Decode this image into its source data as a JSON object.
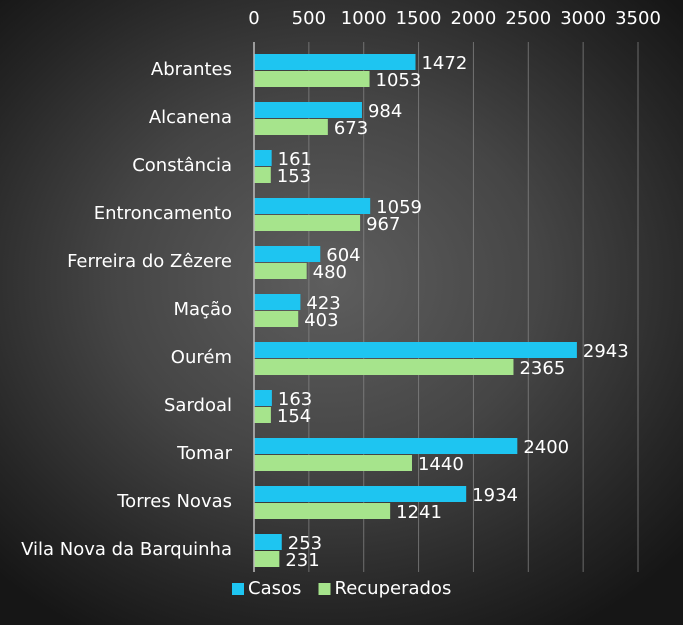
{
  "chart_data": {
    "type": "bar",
    "orientation": "horizontal",
    "categories": [
      "Abrantes",
      "Alcanena",
      "Constância",
      "Entroncamento",
      "Ferreira do Zêzere",
      "Mação",
      "Ourém",
      "Sardoal",
      "Tomar",
      "Torres Novas",
      "Vila Nova da Barquinha"
    ],
    "series": [
      {
        "name": "Casos",
        "color": "#1ec5f1",
        "values": [
          1472,
          984,
          161,
          1059,
          604,
          423,
          2943,
          163,
          2400,
          1934,
          253
        ]
      },
      {
        "name": "Recuperados",
        "color": "#a6e48c",
        "values": [
          1053,
          673,
          153,
          967,
          480,
          403,
          2365,
          154,
          1440,
          1241,
          231
        ]
      }
    ],
    "xlim": [
      0,
      3500
    ],
    "xticks": [
      "0",
      "500",
      "1000",
      "1500",
      "2000",
      "2500",
      "3000",
      "3500"
    ],
    "x_axis_position": "top",
    "grid": true,
    "legend_position": "bottom"
  }
}
